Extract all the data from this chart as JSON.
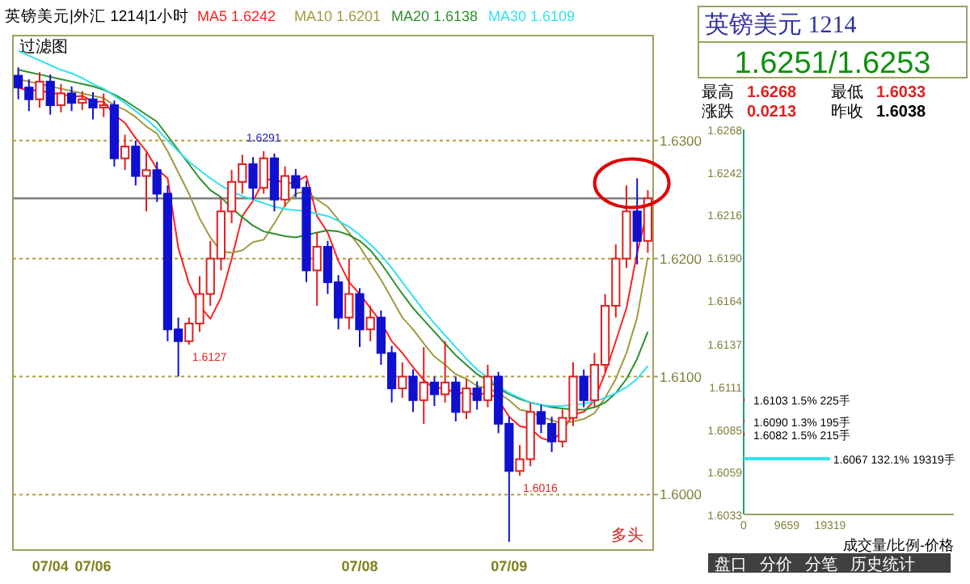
{
  "chart_data": [
    {
      "type": "candlestick",
      "title": "英镑美元|外汇 1214|1小时",
      "subtitle": "过滤图",
      "categories": [
        null,
        null,
        null,
        "07/04",
        null,
        null,
        null,
        "07/06",
        null,
        null,
        null,
        null,
        null,
        null,
        null,
        null,
        null,
        null,
        null,
        null,
        null,
        null,
        null,
        null,
        null,
        null,
        null,
        null,
        null,
        null,
        null,
        null,
        "07/08",
        null,
        null,
        null,
        null,
        null,
        null,
        null,
        null,
        null,
        null,
        null,
        null,
        null,
        "07/09",
        null,
        null,
        null,
        null,
        null,
        null,
        null,
        null,
        null,
        null,
        null,
        null,
        null
      ],
      "ohlc": [
        [
          1.6355,
          1.6362,
          1.6335,
          1.6345
        ],
        [
          1.6345,
          1.6352,
          1.6325,
          1.6335
        ],
        [
          1.6335,
          1.6358,
          1.6328,
          1.635
        ],
        [
          1.635,
          1.6356,
          1.6322,
          1.633
        ],
        [
          1.633,
          1.6348,
          1.6324,
          1.634
        ],
        [
          1.634,
          1.6346,
          1.6325,
          1.6332
        ],
        [
          1.6332,
          1.6342,
          1.6326,
          1.6335
        ],
        [
          1.6335,
          1.6341,
          1.6318,
          1.6328
        ],
        [
          1.6328,
          1.634,
          1.632,
          1.633
        ],
        [
          1.633,
          1.6334,
          1.6278,
          1.6285
        ],
        [
          1.6285,
          1.6305,
          1.6275,
          1.6295
        ],
        [
          1.6295,
          1.63,
          1.6262,
          1.627
        ],
        [
          1.627,
          1.629,
          1.624,
          1.6275
        ],
        [
          1.6275,
          1.6282,
          1.6248,
          1.6255
        ],
        [
          1.6255,
          1.6262,
          1.613,
          1.614
        ],
        [
          1.614,
          1.615,
          1.61,
          1.613
        ],
        [
          1.613,
          1.615,
          1.6127,
          1.6145
        ],
        [
          1.6145,
          1.6185,
          1.6138,
          1.617
        ],
        [
          1.617,
          1.6215,
          1.616,
          1.62
        ],
        [
          1.62,
          1.6252,
          1.619,
          1.624
        ],
        [
          1.624,
          1.6275,
          1.623,
          1.6265
        ],
        [
          1.6265,
          1.6288,
          1.6255,
          1.628
        ],
        [
          1.628,
          1.6286,
          1.625,
          1.626
        ],
        [
          1.626,
          1.6291,
          1.6255,
          1.6285
        ],
        [
          1.6285,
          1.6289,
          1.624,
          1.625
        ],
        [
          1.625,
          1.6278,
          1.6244,
          1.627
        ],
        [
          1.627,
          1.6276,
          1.6252,
          1.626
        ],
        [
          1.626,
          1.6266,
          1.618,
          1.619
        ],
        [
          1.619,
          1.6222,
          1.616,
          1.621
        ],
        [
          1.621,
          1.6215,
          1.617,
          1.618
        ],
        [
          1.618,
          1.6186,
          1.614,
          1.615
        ],
        [
          1.615,
          1.62,
          1.614,
          1.617
        ],
        [
          1.617,
          1.6175,
          1.6125,
          1.614
        ],
        [
          1.614,
          1.616,
          1.613,
          1.615
        ],
        [
          1.615,
          1.6156,
          1.611,
          1.612
        ],
        [
          1.612,
          1.6126,
          1.6078,
          1.609
        ],
        [
          1.609,
          1.6112,
          1.6082,
          1.61
        ],
        [
          1.61,
          1.6106,
          1.607,
          1.608
        ],
        [
          1.608,
          1.6125,
          1.606,
          1.6095
        ],
        [
          1.6095,
          1.61,
          1.6075,
          1.6085
        ],
        [
          1.6085,
          1.613,
          1.6078,
          1.6095
        ],
        [
          1.6095,
          1.61,
          1.6062,
          1.607
        ],
        [
          1.607,
          1.6098,
          1.6064,
          1.609
        ],
        [
          1.609,
          1.6096,
          1.6072,
          1.608
        ],
        [
          1.608,
          1.611,
          1.6074,
          1.61
        ],
        [
          1.61,
          1.6104,
          1.6052,
          1.606
        ],
        [
          1.606,
          1.6066,
          1.596,
          1.602
        ],
        [
          1.602,
          1.6042,
          1.6016,
          1.603
        ],
        [
          1.603,
          1.6078,
          1.6024,
          1.607
        ],
        [
          1.607,
          1.6076,
          1.6052,
          1.606
        ],
        [
          1.606,
          1.6066,
          1.6036,
          1.6045
        ],
        [
          1.6045,
          1.6072,
          1.604,
          1.6065
        ],
        [
          1.6065,
          1.6112,
          1.6058,
          1.61
        ],
        [
          1.61,
          1.6106,
          1.6074,
          1.608
        ],
        [
          1.608,
          1.612,
          1.6074,
          1.611
        ],
        [
          1.611,
          1.617,
          1.6104,
          1.616
        ],
        [
          1.616,
          1.6212,
          1.615,
          1.62
        ],
        [
          1.62,
          1.6262,
          1.6192,
          1.624
        ],
        [
          1.624,
          1.6268,
          1.6195,
          1.6215
        ],
        [
          1.6215,
          1.6258,
          1.6205,
          1.6251
        ]
      ],
      "colors": [
        "#1010d0",
        "#1010d0",
        "#e02020",
        "#1010d0",
        "#e02020",
        "#1010d0",
        "#e02020",
        "#1010d0",
        "#e02020",
        "#1010d0",
        "#e02020",
        "#1010d0",
        "#e02020",
        "#1010d0",
        "#1010d0",
        "#1010d0",
        "#e02020",
        "#e02020",
        "#e02020",
        "#e02020",
        "#e02020",
        "#e02020",
        "#1010d0",
        "#e02020",
        "#1010d0",
        "#e02020",
        "#1010d0",
        "#1010d0",
        "#e02020",
        "#1010d0",
        "#1010d0",
        "#e02020",
        "#1010d0",
        "#e02020",
        "#1010d0",
        "#1010d0",
        "#e02020",
        "#1010d0",
        "#e02020",
        "#1010d0",
        "#e02020",
        "#1010d0",
        "#e02020",
        "#1010d0",
        "#e02020",
        "#1010d0",
        "#1010d0",
        "#e02020",
        "#e02020",
        "#1010d0",
        "#1010d0",
        "#e02020",
        "#e02020",
        "#1010d0",
        "#e02020",
        "#e02020",
        "#e02020",
        "#e02020",
        "#1010d0",
        "#e02020"
      ],
      "series": [
        {
          "name": "MA5 1.6242",
          "type": "line",
          "color": "#ff2020",
          "values": [
            1.6345,
            1.6342,
            1.6343,
            1.634,
            1.634,
            1.6337,
            1.6338,
            1.6333,
            1.6333,
            1.6322,
            1.6315,
            1.6302,
            1.6291,
            1.6276,
            1.6268,
            1.6209,
            1.6179,
            1.616,
            1.6149,
            1.6167,
            1.62,
            1.6236,
            1.6249,
            1.6266,
            1.6268,
            1.6263,
            1.6265,
            1.627,
            1.6236,
            1.6222,
            1.6198,
            1.618,
            1.617,
            1.6158,
            1.6146,
            1.613,
            1.612,
            1.6108,
            1.6097,
            1.609,
            1.6091,
            1.6085,
            1.6087,
            1.6084,
            1.6087,
            1.608,
            1.6066,
            1.6058,
            1.6056,
            1.6048,
            1.6045,
            1.6054,
            1.6068,
            1.607,
            1.608,
            1.6103,
            1.613,
            1.6158,
            1.6205,
            1.6242
          ]
        },
        {
          "name": "MA10 1.6201",
          "type": "line",
          "color": "#a09a40",
          "values": [
            1.6352,
            1.635,
            1.6348,
            1.6346,
            1.6344,
            1.6342,
            1.634,
            1.6338,
            1.6336,
            1.633,
            1.6326,
            1.632,
            1.6312,
            1.6306,
            1.6291,
            1.6273,
            1.6255,
            1.6234,
            1.6218,
            1.6206,
            1.6205,
            1.6207,
            1.6214,
            1.6216,
            1.623,
            1.6245,
            1.6255,
            1.6257,
            1.625,
            1.6244,
            1.6233,
            1.6222,
            1.621,
            1.6196,
            1.6182,
            1.6166,
            1.615,
            1.614,
            1.6128,
            1.6117,
            1.611,
            1.6102,
            1.6098,
            1.6092,
            1.609,
            1.6086,
            1.608,
            1.6072,
            1.607,
            1.6066,
            1.6063,
            1.606,
            1.6062,
            1.6064,
            1.6069,
            1.6082,
            1.6098,
            1.612,
            1.615,
            1.6201
          ]
        },
        {
          "name": "MA20 1.6138",
          "type": "line",
          "color": "#2f8f2f",
          "values": [
            1.636,
            1.6358,
            1.6356,
            1.6354,
            1.6352,
            1.635,
            1.6348,
            1.6346,
            1.6343,
            1.6339,
            1.6334,
            1.6328,
            1.6322,
            1.6316,
            1.6304,
            1.6292,
            1.628,
            1.6268,
            1.6258,
            1.6252,
            1.6243,
            1.6235,
            1.6228,
            1.6223,
            1.6221,
            1.6219,
            1.6218,
            1.622,
            1.6222,
            1.6224,
            1.6223,
            1.622,
            1.6215,
            1.6207,
            1.6196,
            1.6183,
            1.617,
            1.6158,
            1.6148,
            1.6138,
            1.6128,
            1.6118,
            1.611,
            1.6102,
            1.6097,
            1.609,
            1.6085,
            1.6081,
            1.6078,
            1.6076,
            1.6074,
            1.6073,
            1.6072,
            1.6072,
            1.6074,
            1.6078,
            1.6086,
            1.6098,
            1.6115,
            1.6138
          ]
        },
        {
          "name": "MA30 1.6109",
          "type": "line",
          "color": "#30e0f0",
          "values": [
            1.6376,
            1.6372,
            1.6368,
            1.6364,
            1.636,
            1.6357,
            1.6353,
            1.6348,
            1.6344,
            1.6338,
            1.6332,
            1.6325,
            1.6318,
            1.631,
            1.63,
            1.6291,
            1.6282,
            1.6275,
            1.6268,
            1.6262,
            1.6257,
            1.6253,
            1.625,
            1.6247,
            1.6244,
            1.6242,
            1.6241,
            1.624,
            1.6238,
            1.6236,
            1.6232,
            1.6227,
            1.622,
            1.6212,
            1.6203,
            1.6192,
            1.618,
            1.6168,
            1.6156,
            1.6145,
            1.6135,
            1.6125,
            1.6115,
            1.6106,
            1.6099,
            1.6092,
            1.6086,
            1.6082,
            1.6078,
            1.6076,
            1.6075,
            1.6075,
            1.6076,
            1.6077,
            1.6079,
            1.6082,
            1.6086,
            1.6091,
            1.6098,
            1.6109
          ]
        }
      ],
      "ylim": [
        1.5953,
        1.6389
      ],
      "yticks": [
        {
          "value": 1.6,
          "label": "1.6000"
        },
        {
          "value": 1.61,
          "label": "1.6100"
        },
        {
          "value": 1.62,
          "label": "1.6200"
        },
        {
          "value": 1.63,
          "label": "1.6300"
        }
      ],
      "grid": "y",
      "legend": "top",
      "ref_lines": [
        {
          "axis": "y",
          "value": 1.6251,
          "color": "#808080"
        }
      ],
      "annotations": [
        "1.6291",
        "1.6127",
        "1.6016",
        "多头"
      ]
    },
    {
      "type": "other",
      "title": "英镑美元 1214",
      "annotations": [
        "1.6251/1.6253",
        "最高",
        "1.6268",
        "最低",
        "1.6033",
        "涨跌",
        "0.0213",
        "昨收",
        "1.6038",
        "盘口",
        "分价",
        "分笔",
        "历史统计"
      ]
    },
    {
      "type": "bar",
      "orientation": "horizontal",
      "xlabel": "成交量/比例-价格",
      "x": [
        1.6103,
        1.609,
        1.6082,
        1.6067
      ],
      "values": [
        225,
        195,
        215,
        19319
      ],
      "colors": [
        "#ff0000",
        "#ff0000",
        "#ff0000",
        "#30e0f0"
      ],
      "value_labels": [
        "1.6103 1.5% 225手",
        "1.6090 1.3% 195手",
        "1.6082 1.5% 215手",
        "1.6067 132.1% 19319手"
      ],
      "xlim": [
        0,
        47000
      ],
      "xticks": [
        0,
        9659,
        19319
      ],
      "ylim": [
        1.6033,
        1.6268
      ],
      "yticks": [
        1.6033,
        1.6059,
        1.6085,
        1.6111,
        1.6137,
        1.6164,
        {
          "value": 1.619,
          "label": "1.6190"
        },
        1.6216,
        1.6242,
        1.6268
      ]
    }
  ]
}
